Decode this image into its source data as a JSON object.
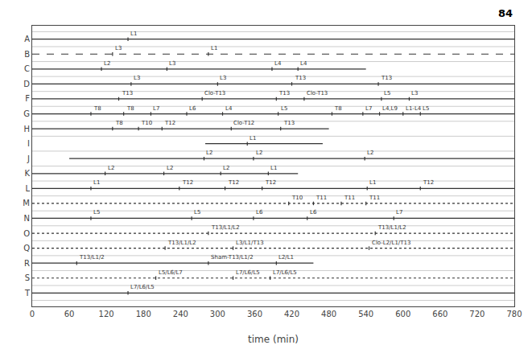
{
  "chart_data": {
    "type": "timeline",
    "xlabel": "time (min)",
    "annotations": [
      "84"
    ],
    "categories": [
      "A",
      "B",
      "C",
      "D",
      "F",
      "G",
      "H",
      "I",
      "J",
      "K",
      "L",
      "M",
      "N",
      "O",
      "Q",
      "R",
      "S",
      "T"
    ],
    "xlim": [
      0,
      780
    ],
    "xticks": [
      0,
      60,
      120,
      180,
      240,
      300,
      360,
      420,
      480,
      540,
      600,
      660,
      720,
      780
    ],
    "grid": true,
    "color": "#333333",
    "segments": [
      {
        "category": "A",
        "x0": 0,
        "x1": 780,
        "line_style": "solid",
        "labels": [
          {
            "x": 155,
            "text": "L1"
          }
        ]
      },
      {
        "category": "B",
        "x0": 0,
        "x1": 780,
        "line_style": "dashed",
        "labels": [
          {
            "x": 130,
            "text": "L3"
          },
          {
            "x": 285,
            "text": "L1"
          }
        ]
      },
      {
        "category": "C",
        "x0": 0,
        "x1": 540,
        "line_style": "solid",
        "labels": [
          {
            "x": 112,
            "text": "L2"
          },
          {
            "x": 218,
            "text": "L3"
          },
          {
            "x": 388,
            "text": "L4"
          },
          {
            "x": 430,
            "text": "L4"
          }
        ]
      },
      {
        "category": "D",
        "x0": 0,
        "x1": 780,
        "line_style": "solid",
        "labels": [
          {
            "x": 160,
            "text": "L3"
          },
          {
            "x": 300,
            "text": "L3"
          },
          {
            "x": 420,
            "text": "T13"
          },
          {
            "x": 560,
            "text": "T13"
          }
        ]
      },
      {
        "category": "F",
        "x0": 0,
        "x1": 780,
        "line_style": "solid",
        "labels": [
          {
            "x": 140,
            "text": "T13"
          },
          {
            "x": 275,
            "text": "Clo-T13"
          },
          {
            "x": 395,
            "text": "T13"
          },
          {
            "x": 440,
            "text": "Clo-T13"
          },
          {
            "x": 565,
            "text": "L5"
          },
          {
            "x": 610,
            "text": "L3"
          }
        ]
      },
      {
        "category": "G",
        "x0": 0,
        "x1": 780,
        "line_style": "solid",
        "labels": [
          {
            "x": 95,
            "text": "T8"
          },
          {
            "x": 148,
            "text": "T8"
          },
          {
            "x": 192,
            "text": "L7"
          },
          {
            "x": 250,
            "text": "L6"
          },
          {
            "x": 308,
            "text": "L4"
          },
          {
            "x": 398,
            "text": "L5"
          },
          {
            "x": 485,
            "text": "T8"
          },
          {
            "x": 535,
            "text": "L7"
          },
          {
            "x": 562,
            "text": "L4,L9"
          },
          {
            "x": 600,
            "text": "L1-L4"
          },
          {
            "x": 628,
            "text": "L5"
          }
        ]
      },
      {
        "category": "H",
        "x0": 0,
        "x1": 480,
        "line_style": "solid",
        "labels": [
          {
            "x": 130,
            "text": "T8"
          },
          {
            "x": 172,
            "text": "T10"
          },
          {
            "x": 210,
            "text": "T12"
          },
          {
            "x": 322,
            "text": "Clo-T12"
          },
          {
            "x": 402,
            "text": "T13"
          }
        ]
      },
      {
        "category": "I",
        "x0": 280,
        "x1": 470,
        "line_style": "solid",
        "labels": [
          {
            "x": 348,
            "text": "L1"
          }
        ]
      },
      {
        "category": "J",
        "x0": 60,
        "x1": 780,
        "line_style": "solid",
        "labels": [
          {
            "x": 278,
            "text": "L2"
          },
          {
            "x": 358,
            "text": "L2"
          },
          {
            "x": 538,
            "text": "L2"
          }
        ]
      },
      {
        "category": "K",
        "x0": 0,
        "x1": 430,
        "line_style": "solid",
        "labels": [
          {
            "x": 118,
            "text": "L2"
          },
          {
            "x": 213,
            "text": "L2"
          },
          {
            "x": 305,
            "text": "L2"
          },
          {
            "x": 382,
            "text": "L1"
          }
        ]
      },
      {
        "category": "L",
        "x0": 0,
        "x1": 780,
        "line_style": "solid",
        "labels": [
          {
            "x": 95,
            "text": "L1"
          },
          {
            "x": 238,
            "text": "T12"
          },
          {
            "x": 312,
            "text": "T12"
          },
          {
            "x": 372,
            "text": "T12"
          },
          {
            "x": 542,
            "text": "L1"
          },
          {
            "x": 628,
            "text": "T12"
          }
        ]
      },
      {
        "category": "M",
        "x0": 0,
        "x1": 780,
        "line_style": "dotted",
        "labels": [
          {
            "x": 415,
            "text": "T10"
          },
          {
            "x": 455,
            "text": "T11"
          },
          {
            "x": 500,
            "text": "T11"
          },
          {
            "x": 540,
            "text": "T11"
          }
        ]
      },
      {
        "category": "N",
        "x0": 0,
        "x1": 780,
        "line_style": "solid",
        "labels": [
          {
            "x": 95,
            "text": "L5"
          },
          {
            "x": 258,
            "text": "L5"
          },
          {
            "x": 358,
            "text": "L6"
          },
          {
            "x": 445,
            "text": "L6"
          },
          {
            "x": 585,
            "text": "L7"
          }
        ]
      },
      {
        "category": "O",
        "x0": 0,
        "x1": 780,
        "line_style": "dotted",
        "labels": [
          {
            "x": 285,
            "text": "T13/L1/L2"
          },
          {
            "x": 555,
            "text": "T13/L1/L2"
          }
        ]
      },
      {
        "category": "Q",
        "x0": 0,
        "x1": 780,
        "line_style": "dotted",
        "labels": [
          {
            "x": 215,
            "text": "T13/L1/L2"
          },
          {
            "x": 325,
            "text": "L3/L1/T13"
          },
          {
            "x": 545,
            "text": "Clo-L2/L1/T13"
          }
        ]
      },
      {
        "category": "R",
        "x0": 0,
        "x1": 455,
        "line_style": "solid",
        "labels": [
          {
            "x": 72,
            "text": "T13/L1/2"
          },
          {
            "x": 285,
            "text": "Sham-T13/L1/2"
          },
          {
            "x": 395,
            "text": "L2/L1"
          }
        ]
      },
      {
        "category": "S",
        "x0": 0,
        "x1": 780,
        "line_style": "dotted",
        "labels": [
          {
            "x": 200,
            "text": "L5/L6/L7"
          },
          {
            "x": 325,
            "text": "L7/L6/L5"
          },
          {
            "x": 385,
            "text": "L7/L6/L5"
          }
        ]
      },
      {
        "category": "T",
        "x0": 0,
        "x1": 780,
        "line_style": "solid",
        "labels": [
          {
            "x": 155,
            "text": "L7/L6/L5"
          }
        ]
      }
    ]
  }
}
